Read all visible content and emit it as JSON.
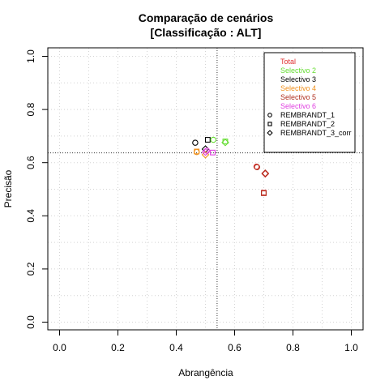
{
  "chart_data": {
    "type": "scatter",
    "title": "Comparação de cenários",
    "subtitle": "[Classificação : ALT]",
    "xlabel": "Abrangência",
    "ylabel": "Precisão",
    "xlim": [
      0,
      1
    ],
    "ylim": [
      0,
      1
    ],
    "x_ticks": [
      "0.0",
      "0.2",
      "0.4",
      "0.6",
      "0.8",
      "1.0"
    ],
    "y_ticks": [
      "0.0",
      "0.2",
      "0.4",
      "0.6",
      "0.8",
      "1.0"
    ],
    "grid": true,
    "legend_position": "top-right",
    "reference_lines": {
      "x": 0.54,
      "y": 0.637
    },
    "scenarios": [
      {
        "name": "Total",
        "color": "#e03030"
      },
      {
        "name": "Selectivo 2",
        "color": "#66dd33"
      },
      {
        "name": "Selectivo 3",
        "color": "#000000"
      },
      {
        "name": "Selectivo 4",
        "color": "#f0901c"
      },
      {
        "name": "Selectivo 5",
        "color": "#b03020"
      },
      {
        "name": "Selectivo 6",
        "color": "#e040e0"
      }
    ],
    "methods": [
      {
        "name": "REMBRANDT_1",
        "shape": "circle"
      },
      {
        "name": "REMBRANDT_2",
        "shape": "square"
      },
      {
        "name": "REMBRANDT_3_corr",
        "shape": "diamond"
      }
    ],
    "points": [
      {
        "scenario": "Selectivo 3",
        "method": "REMBRANDT_1",
        "x": 0.465,
        "y": 0.675
      },
      {
        "scenario": "Selectivo 3",
        "method": "REMBRANDT_2",
        "x": 0.508,
        "y": 0.686
      },
      {
        "scenario": "Selectivo 3",
        "method": "REMBRANDT_3_corr",
        "x": 0.5,
        "y": 0.651
      },
      {
        "scenario": "Selectivo 2",
        "method": "REMBRANDT_1",
        "x": 0.527,
        "y": 0.686
      },
      {
        "scenario": "Selectivo 2",
        "method": "REMBRANDT_2",
        "x": 0.568,
        "y": 0.68
      },
      {
        "scenario": "Selectivo 2",
        "method": "REMBRANDT_3_corr",
        "x": 0.568,
        "y": 0.676
      },
      {
        "scenario": "Selectivo 4",
        "method": "REMBRANDT_1",
        "x": 0.47,
        "y": 0.64
      },
      {
        "scenario": "Selectivo 4",
        "method": "REMBRANDT_2",
        "x": 0.47,
        "y": 0.642
      },
      {
        "scenario": "Selectivo 4",
        "method": "REMBRANDT_3_corr",
        "x": 0.5,
        "y": 0.63
      },
      {
        "scenario": "Selectivo 6",
        "method": "REMBRANDT_1",
        "x": 0.505,
        "y": 0.645
      },
      {
        "scenario": "Selectivo 6",
        "method": "REMBRANDT_2",
        "x": 0.525,
        "y": 0.638
      },
      {
        "scenario": "Selectivo 6",
        "method": "REMBRANDT_3_corr",
        "x": 0.5,
        "y": 0.64
      },
      {
        "scenario": "Total",
        "method": "REMBRANDT_1",
        "x": 0.675,
        "y": 0.585
      },
      {
        "scenario": "Total",
        "method": "REMBRANDT_2",
        "x": 0.7,
        "y": 0.487
      },
      {
        "scenario": "Total",
        "method": "REMBRANDT_3_corr",
        "x": 0.705,
        "y": 0.558
      },
      {
        "scenario": "Selectivo 5",
        "method": "REMBRANDT_1",
        "x": 0.677,
        "y": 0.583
      },
      {
        "scenario": "Selectivo 5",
        "method": "REMBRANDT_2",
        "x": 0.7,
        "y": 0.485
      },
      {
        "scenario": "Selectivo 5",
        "method": "REMBRANDT_3_corr",
        "x": 0.705,
        "y": 0.56
      }
    ]
  }
}
